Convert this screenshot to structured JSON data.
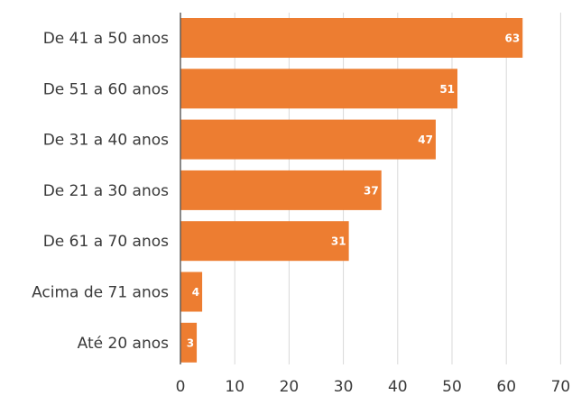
{
  "chart_data": {
    "type": "bar",
    "orientation": "horizontal",
    "categories": [
      "De 41 a 50 anos",
      "De 51 a 60 anos",
      "De 31 a 40 anos",
      "De 21 a 30 anos",
      "De 61 a 70 anos",
      "Acima de 71 anos",
      "Até 20 anos"
    ],
    "values": [
      63,
      51,
      47,
      37,
      31,
      4,
      3
    ],
    "xlim": [
      0,
      70
    ],
    "xticks": [
      0,
      10,
      20,
      30,
      40,
      50,
      60,
      70
    ],
    "grid": "vertical",
    "legend": "none",
    "data_labels": true,
    "bar_color": "#ED7D31",
    "label_color": "#ffffff"
  }
}
